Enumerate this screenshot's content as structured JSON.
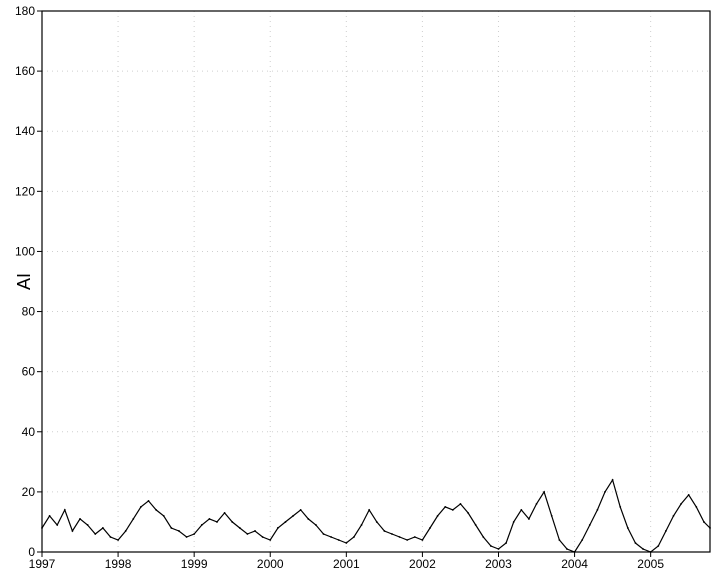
{
  "chart_data": {
    "type": "line",
    "ylabel": "AI",
    "ylim": [
      0,
      180
    ],
    "yticks": [
      0,
      20,
      40,
      60,
      80,
      100,
      120,
      140,
      160,
      180
    ],
    "xlim": [
      1997.0,
      2005.78
    ],
    "xticks": [
      1997,
      1998,
      1999,
      2000,
      2001,
      2002,
      2003,
      2004,
      2005
    ],
    "x_tick_labels": [
      "1997",
      "1998",
      "1999",
      "2000",
      "2001",
      "2002",
      "2003",
      "2004",
      "2005"
    ],
    "grid": true,
    "series": [
      {
        "color": "#000000",
        "x": [
          1997.0,
          1997.1,
          1997.2,
          1997.3,
          1997.4,
          1997.5,
          1997.6,
          1997.7,
          1997.8,
          1997.9,
          1998.0,
          1998.1,
          1998.2,
          1998.3,
          1998.4,
          1998.5,
          1998.6,
          1998.7,
          1998.8,
          1998.9,
          1999.0,
          1999.1,
          1999.2,
          1999.3,
          1999.4,
          1999.5,
          1999.6,
          1999.7,
          1999.8,
          1999.9,
          2000.0,
          2000.1,
          2000.2,
          2000.3,
          2000.4,
          2000.5,
          2000.6,
          2000.7,
          2000.8,
          2000.9,
          2001.0,
          2001.1,
          2001.2,
          2001.3,
          2001.4,
          2001.5,
          2001.6,
          2001.7,
          2001.8,
          2001.9,
          2002.0,
          2002.1,
          2002.2,
          2002.3,
          2002.4,
          2002.5,
          2002.6,
          2002.7,
          2002.8,
          2002.9,
          2003.0,
          2003.1,
          2003.2,
          2003.3,
          2003.4,
          2003.5,
          2003.6,
          2003.7,
          2003.8,
          2003.9,
          2004.0,
          2004.1,
          2004.2,
          2004.3,
          2004.4,
          2004.5,
          2004.6,
          2004.7,
          2004.8,
          2004.9,
          2005.0,
          2005.1,
          2005.2,
          2005.3,
          2005.4,
          2005.5,
          2005.6,
          2005.7,
          2005.78
        ],
        "y": [
          8,
          12,
          9,
          14,
          7,
          11,
          9,
          6,
          8,
          5,
          4,
          7,
          11,
          15,
          17,
          14,
          12,
          8,
          7,
          5,
          6,
          9,
          11,
          10,
          13,
          10,
          8,
          6,
          7,
          5,
          4,
          8,
          10,
          12,
          14,
          11,
          9,
          6,
          5,
          4,
          3,
          5,
          9,
          14,
          10,
          7,
          6,
          5,
          4,
          5,
          4,
          8,
          12,
          15,
          14,
          16,
          13,
          9,
          5,
          2,
          1,
          3,
          10,
          14,
          11,
          16,
          20,
          12,
          4,
          1,
          0,
          4,
          9,
          14,
          20,
          24,
          15,
          8,
          3,
          1,
          0,
          2,
          7,
          12,
          16,
          19,
          15,
          10,
          8
        ]
      }
    ]
  }
}
